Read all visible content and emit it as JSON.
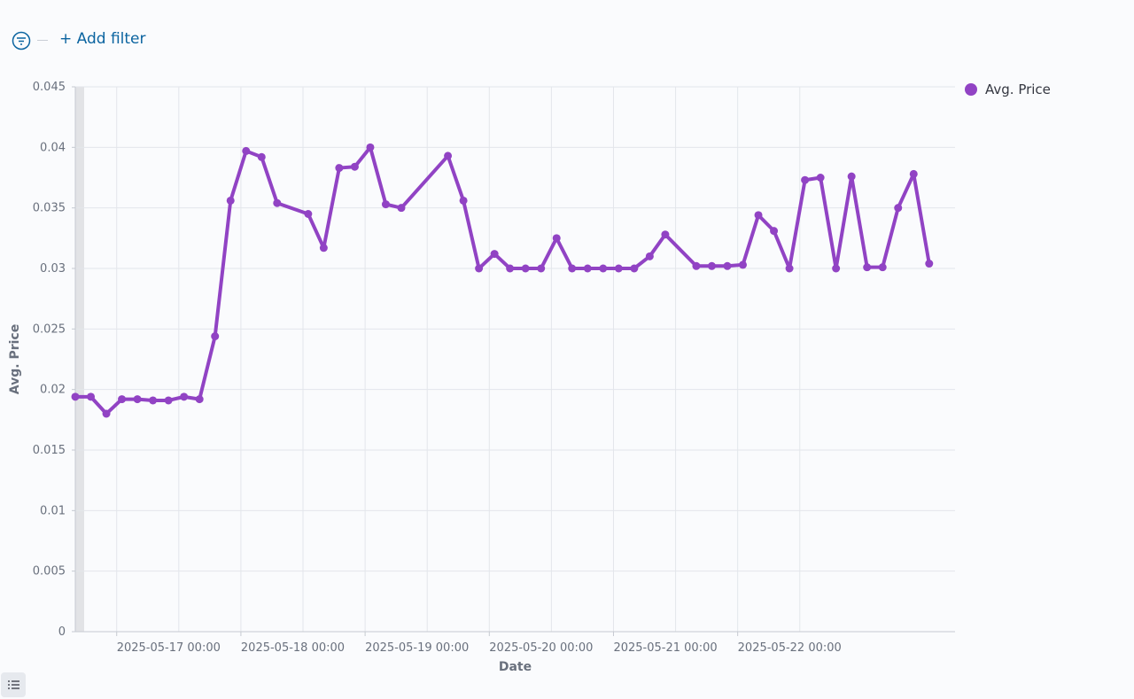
{
  "header": {
    "add_filter": "+ Add filter"
  },
  "chart_data": {
    "type": "line",
    "x_label": "Date",
    "y_label": "Avg. Price",
    "legend": "right",
    "grid": true,
    "x": [
      "2025-05-16 16:00",
      "2025-05-16 19:00",
      "2025-05-16 22:00",
      "2025-05-17 01:00",
      "2025-05-17 04:00",
      "2025-05-17 07:00",
      "2025-05-17 10:00",
      "2025-05-17 13:00",
      "2025-05-17 16:00",
      "2025-05-17 19:00",
      "2025-05-17 22:00",
      "2025-05-18 01:00",
      "2025-05-18 04:00",
      "2025-05-18 07:00",
      "2025-05-18 13:00",
      "2025-05-18 16:00",
      "2025-05-18 19:00",
      "2025-05-18 22:00",
      "2025-05-19 01:00",
      "2025-05-19 04:00",
      "2025-05-19 07:00",
      "2025-05-19 16:00",
      "2025-05-19 19:00",
      "2025-05-19 22:00",
      "2025-05-20 01:00",
      "2025-05-20 04:00",
      "2025-05-20 07:00",
      "2025-05-20 10:00",
      "2025-05-20 13:00",
      "2025-05-20 16:00",
      "2025-05-20 19:00",
      "2025-05-20 22:00",
      "2025-05-21 01:00",
      "2025-05-21 04:00",
      "2025-05-21 07:00",
      "2025-05-21 10:00",
      "2025-05-21 16:00",
      "2025-05-21 19:00",
      "2025-05-21 22:00",
      "2025-05-22 01:00",
      "2025-05-22 04:00",
      "2025-05-22 07:00",
      "2025-05-22 10:00",
      "2025-05-22 13:00",
      "2025-05-22 16:00",
      "2025-05-22 19:00",
      "2025-05-22 22:00",
      "2025-05-23 01:00",
      "2025-05-23 04:00",
      "2025-05-23 07:00",
      "2025-05-23 10:00",
      "2025-05-23 13:00"
    ],
    "series": [
      {
        "name": "Avg. Price",
        "color": "#9143c4",
        "values": [
          0.0194,
          0.0194,
          0.018,
          0.0192,
          0.0192,
          0.0191,
          0.0191,
          0.0194,
          0.0192,
          0.0244,
          0.0356,
          0.0397,
          0.0392,
          0.0354,
          0.0345,
          0.0317,
          0.0383,
          0.0384,
          0.04,
          0.0353,
          0.035,
          0.0393,
          0.0356,
          0.03,
          0.0312,
          0.03,
          0.03,
          0.03,
          0.0325,
          0.03,
          0.03,
          0.03,
          0.03,
          0.03,
          0.031,
          0.0328,
          0.0302,
          0.0302,
          0.0302,
          0.0303,
          0.0344,
          0.0331,
          0.03,
          0.0373,
          0.0375,
          0.03,
          0.0376,
          0.0301,
          0.0301,
          0.035,
          0.0378,
          0.0304
        ]
      }
    ],
    "xlim": [
      "2025-05-16 16:00",
      "2025-05-23 18:00"
    ],
    "xticks": [
      "2025-05-17 00:00",
      "2025-05-18 00:00",
      "2025-05-19 00:00",
      "2025-05-20 00:00",
      "2025-05-21 00:00",
      "2025-05-22 00:00"
    ],
    "ylim": [
      0,
      0.045
    ],
    "yticks": [
      0,
      0.005,
      0.01,
      0.015,
      0.02,
      0.025,
      0.03,
      0.035,
      0.04,
      0.045
    ]
  }
}
